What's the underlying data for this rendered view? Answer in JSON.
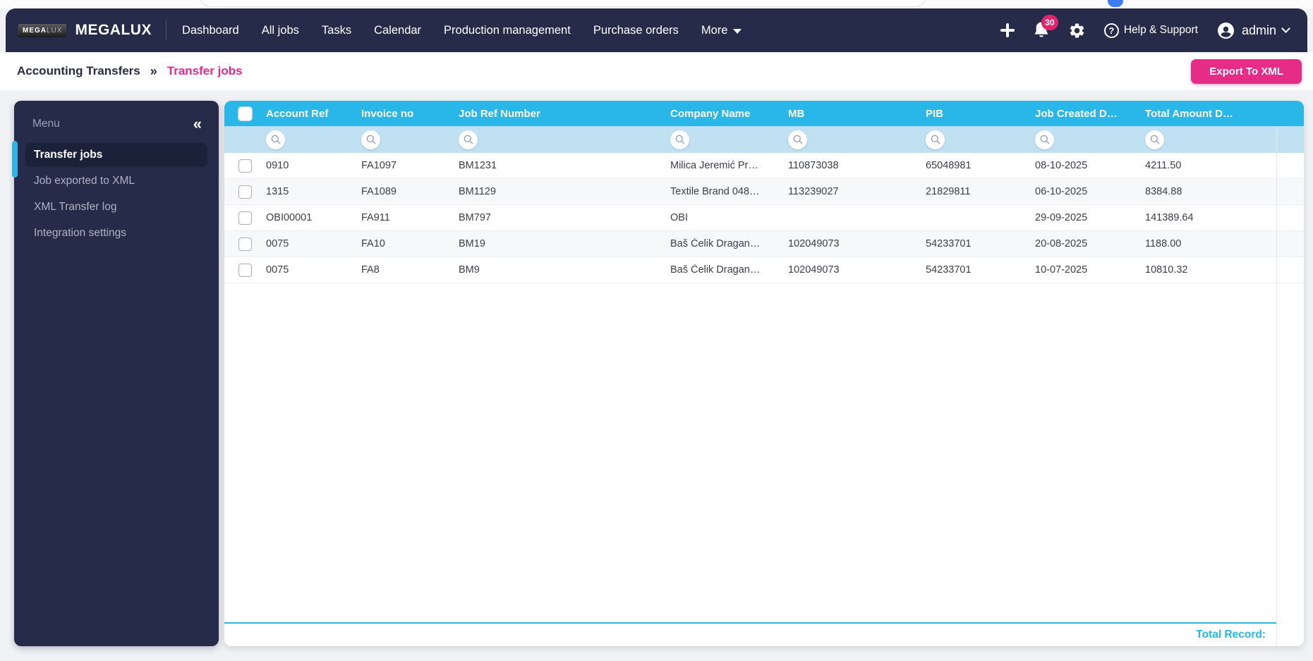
{
  "topnav": {
    "brand": "MEGALUX",
    "logo_badge": {
      "part1": "MEGA",
      "part2": "LUX"
    },
    "items": [
      "Dashboard",
      "All jobs",
      "Tasks",
      "Calendar",
      "Production management",
      "Purchase orders"
    ],
    "more_label": "More",
    "notification_count": "30",
    "help_icon_glyph": "?",
    "help_label": "Help & Support",
    "user_label": "admin"
  },
  "breadcrumb": {
    "parent": "Accounting Transfers",
    "separator": "»",
    "current": "Transfer jobs",
    "export_button_label": "Export To XML"
  },
  "sidebar": {
    "title": "Menu",
    "collapse_icon": "«",
    "items": [
      {
        "label": "Transfer jobs",
        "active": true
      },
      {
        "label": "Job exported to XML",
        "active": false
      },
      {
        "label": "XML Transfer log",
        "active": false
      },
      {
        "label": "Integration settings",
        "active": false
      }
    ]
  },
  "table": {
    "columns": [
      {
        "key": "account_ref",
        "label": "Account Ref"
      },
      {
        "key": "invoice_no",
        "label": "Invoice no"
      },
      {
        "key": "job_ref_number",
        "label": "Job Ref Number"
      },
      {
        "key": "company_name",
        "label": "Company Name"
      },
      {
        "key": "mb",
        "label": "MB"
      },
      {
        "key": "pib",
        "label": "PIB"
      },
      {
        "key": "job_created_date",
        "label": "Job Created D…"
      },
      {
        "key": "total_amount_due",
        "label": "Total Amount D…"
      }
    ],
    "rows": [
      [
        "0910",
        "FA1097",
        "BM1231",
        "Milica Jeremić Pr…",
        "110873038",
        "65048981",
        "08-10-2025",
        "4211.50"
      ],
      [
        "1315",
        "FA1089",
        "BM1129",
        "Textile Brand 048…",
        "113239027",
        "21829811",
        "06-10-2025",
        "8384.88"
      ],
      [
        "OBI00001",
        "FA911",
        "BM797",
        "OBI",
        "",
        "",
        "29-09-2025",
        "141389.64"
      ],
      [
        "0075",
        "FA10",
        "BM19",
        "Baš Čelik Dragan…",
        "102049073",
        "54233701",
        "20-08-2025",
        "1188.00"
      ],
      [
        "0075",
        "FA8",
        "BM9",
        "Baš Čelik Dragan…",
        "102049073",
        "54233701",
        "10-07-2025",
        "10810.32"
      ]
    ],
    "footer_label": "Total Record:"
  },
  "colors": {
    "navy": "#252b48",
    "accent_cyan": "#29b6e8",
    "filter_blue": "#bfe1f2",
    "accent_pink": "#e72c87",
    "badge_pink": "#e0246e"
  }
}
